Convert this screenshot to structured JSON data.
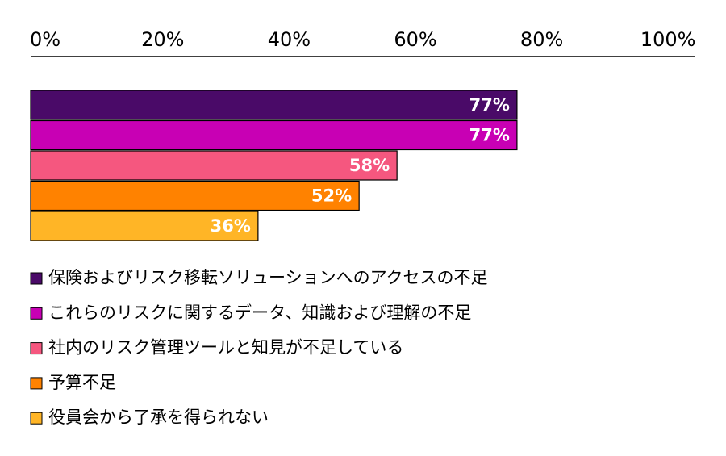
{
  "chart_data": {
    "type": "barh",
    "categories": [
      "保険およびリスク移転ソリューションへのアクセスの不足",
      "これらのリスクに関するデータ、知識および理解の不足",
      "社内のリスク管理ツールと知見が不足している",
      "予算不足",
      "役員会から了承を得られない"
    ],
    "values": [
      77,
      77,
      58,
      52,
      36
    ],
    "value_labels": [
      "77%",
      "77%",
      "58%",
      "52%",
      "36%"
    ],
    "colors": [
      "#4a0a68",
      "#c800b4",
      "#f5577f",
      "#ff8200",
      "#ffb526"
    ],
    "xlim": [
      0,
      100
    ],
    "xticks": [
      {
        "value": 0,
        "label": "0%"
      },
      {
        "value": 20,
        "label": "20%"
      },
      {
        "value": 40,
        "label": "40%"
      },
      {
        "value": 60,
        "label": "60%"
      },
      {
        "value": 80,
        "label": "80%"
      },
      {
        "value": 100,
        "label": "100%"
      }
    ],
    "grid": false
  }
}
